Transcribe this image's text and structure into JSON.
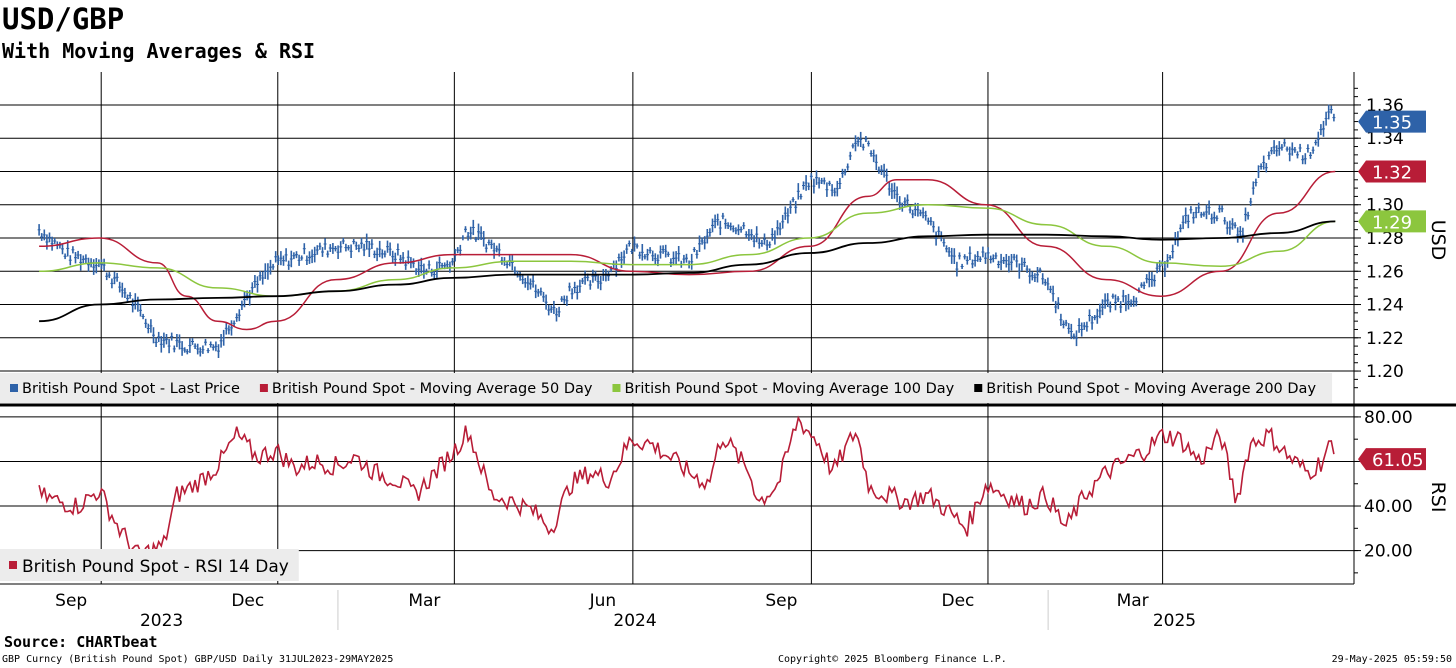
{
  "title": "USD/GBP",
  "subtitle": "With Moving Averages & RSI",
  "source": "Source: CHARTbeat",
  "footer": {
    "left": "GBP Curncy (British Pound Spot) GBP/USD  Daily 31JUL2023-29MAY2025",
    "center": "Copyright© 2025 Bloomberg Finance L.P.",
    "right": "29-May-2025 05:59:50"
  },
  "colors": {
    "price": "#2e62a8",
    "ma50": "#b81d37",
    "ma100": "#8cc63e",
    "ma200": "#000000",
    "rsi": "#b81d37",
    "grid": "#000000"
  },
  "chart_data": [
    {
      "type": "line",
      "ylabel": "USD",
      "ylim": [
        1.185,
        1.375
      ],
      "yticks": [
        "1.20",
        "1.22",
        "1.24",
        "1.26",
        "1.28",
        "1.30",
        "1.32",
        "1.34",
        "1.36"
      ],
      "x_month_labels": [
        "Sep",
        "Dec",
        "Mar",
        "Jun",
        "Sep",
        "Dec",
        "Mar"
      ],
      "x_year_labels": [
        "2023",
        "2024",
        "2025"
      ],
      "callouts": [
        {
          "text": "1.35",
          "value": 1.35,
          "color": "#2e62a8"
        },
        {
          "text": "1.32",
          "value": 1.32,
          "color": "#b81d37"
        },
        {
          "text": "1.29",
          "value": 1.29,
          "color": "#8cc63e"
        }
      ],
      "legend": [
        {
          "label": "British Pound Spot - Last Price",
          "color": "#2e62a8"
        },
        {
          "label": "British Pound Spot - Moving Average 50 Day",
          "color": "#b81d37"
        },
        {
          "label": "British Pound Spot - Moving Average 100 Day",
          "color": "#8cc63e"
        },
        {
          "label": "British Pound Spot - Moving Average 200 Day",
          "color": "#000000"
        }
      ],
      "series": [
        {
          "name": "British Pound Spot - Last Price",
          "x": [
            "2023-07-31",
            "2023-08-15",
            "2023-08-31",
            "2023-09-15",
            "2023-09-30",
            "2023-10-15",
            "2023-10-31",
            "2023-11-15",
            "2023-11-30",
            "2023-12-15",
            "2023-12-31",
            "2024-01-15",
            "2024-01-31",
            "2024-02-15",
            "2024-02-29",
            "2024-03-07",
            "2024-03-15",
            "2024-03-31",
            "2024-04-15",
            "2024-04-22",
            "2024-04-30",
            "2024-05-15",
            "2024-05-31",
            "2024-06-15",
            "2024-06-30",
            "2024-07-15",
            "2024-07-31",
            "2024-08-07",
            "2024-08-15",
            "2024-08-31",
            "2024-09-15",
            "2024-09-24",
            "2024-09-30",
            "2024-10-15",
            "2024-10-31",
            "2024-11-15",
            "2024-11-30",
            "2024-12-15",
            "2024-12-31",
            "2025-01-13",
            "2025-01-31",
            "2025-02-15",
            "2025-02-28",
            "2025-03-15",
            "2025-03-31",
            "2025-04-10",
            "2025-04-20",
            "2025-04-30",
            "2025-05-15",
            "2025-05-26",
            "2025-05-29"
          ],
          "values": [
            1.285,
            1.27,
            1.265,
            1.245,
            1.22,
            1.215,
            1.215,
            1.245,
            1.265,
            1.27,
            1.275,
            1.275,
            1.27,
            1.26,
            1.265,
            1.285,
            1.28,
            1.265,
            1.245,
            1.235,
            1.25,
            1.255,
            1.275,
            1.27,
            1.265,
            1.29,
            1.285,
            1.275,
            1.285,
            1.315,
            1.31,
            1.34,
            1.335,
            1.305,
            1.29,
            1.265,
            1.27,
            1.265,
            1.255,
            1.22,
            1.24,
            1.245,
            1.26,
            1.295,
            1.295,
            1.28,
            1.32,
            1.335,
            1.33,
            1.355,
            1.35
          ]
        },
        {
          "name": "British Pound Spot - Moving Average 50 Day",
          "x": [
            "2023-07-31",
            "2023-08-31",
            "2023-09-30",
            "2023-10-15",
            "2023-10-31",
            "2023-11-15",
            "2023-11-30",
            "2023-12-31",
            "2024-01-31",
            "2024-02-29",
            "2024-03-31",
            "2024-04-30",
            "2024-05-31",
            "2024-06-30",
            "2024-07-31",
            "2024-08-31",
            "2024-09-30",
            "2024-10-15",
            "2024-10-31",
            "2024-11-30",
            "2024-12-31",
            "2025-01-31",
            "2025-02-28",
            "2025-03-31",
            "2025-04-30",
            "2025-05-29"
          ],
          "values": [
            1.275,
            1.28,
            1.265,
            1.245,
            1.23,
            1.225,
            1.23,
            1.255,
            1.265,
            1.27,
            1.27,
            1.27,
            1.26,
            1.258,
            1.26,
            1.275,
            1.305,
            1.315,
            1.315,
            1.3,
            1.275,
            1.255,
            1.245,
            1.26,
            1.295,
            1.32
          ]
        },
        {
          "name": "British Pound Spot - Moving Average 100 Day",
          "x": [
            "2023-07-31",
            "2023-08-31",
            "2023-09-30",
            "2023-10-31",
            "2023-11-30",
            "2023-12-31",
            "2024-01-31",
            "2024-02-29",
            "2024-03-31",
            "2024-04-30",
            "2024-05-31",
            "2024-06-30",
            "2024-07-31",
            "2024-08-31",
            "2024-09-30",
            "2024-10-31",
            "2024-11-30",
            "2024-12-31",
            "2025-01-31",
            "2025-02-28",
            "2025-03-31",
            "2025-04-30",
            "2025-05-29"
          ],
          "values": [
            1.26,
            1.265,
            1.262,
            1.25,
            1.245,
            1.248,
            1.255,
            1.262,
            1.266,
            1.266,
            1.264,
            1.264,
            1.27,
            1.28,
            1.295,
            1.3,
            1.298,
            1.288,
            1.275,
            1.265,
            1.263,
            1.272,
            1.29
          ]
        },
        {
          "name": "British Pound Spot - Moving Average 200 Day",
          "x": [
            "2023-07-31",
            "2023-08-31",
            "2023-09-30",
            "2023-10-31",
            "2023-11-30",
            "2023-12-31",
            "2024-01-31",
            "2024-02-29",
            "2024-03-31",
            "2024-04-30",
            "2024-05-31",
            "2024-06-30",
            "2024-07-31",
            "2024-08-31",
            "2024-09-30",
            "2024-10-31",
            "2024-11-30",
            "2024-12-31",
            "2025-01-31",
            "2025-02-28",
            "2025-03-31",
            "2025-04-30",
            "2025-05-29"
          ],
          "values": [
            1.23,
            1.24,
            1.243,
            1.244,
            1.245,
            1.248,
            1.252,
            1.256,
            1.258,
            1.258,
            1.258,
            1.259,
            1.264,
            1.271,
            1.277,
            1.281,
            1.282,
            1.282,
            1.281,
            1.279,
            1.28,
            1.283,
            1.29
          ]
        }
      ]
    },
    {
      "type": "line",
      "ylabel": "RSI",
      "ylim": [
        5,
        84
      ],
      "yticks": [
        "20.00",
        "40.00",
        "60.00",
        "80.00"
      ],
      "callouts": [
        {
          "text": "61.05",
          "value": 61.05,
          "color": "#b81d37"
        }
      ],
      "legend": [
        {
          "label": "British Pound Spot - RSI 14 Day",
          "color": "#b81d37"
        }
      ],
      "series": [
        {
          "name": "British Pound Spot - RSI 14 Day",
          "x": [
            "2023-07-31",
            "2023-08-10",
            "2023-08-20",
            "2023-08-31",
            "2023-09-10",
            "2023-09-20",
            "2023-10-03",
            "2023-10-10",
            "2023-10-20",
            "2023-10-31",
            "2023-11-10",
            "2023-11-20",
            "2023-11-30",
            "2023-12-10",
            "2023-12-20",
            "2023-12-31",
            "2024-01-10",
            "2024-01-20",
            "2024-01-31",
            "2024-02-10",
            "2024-02-20",
            "2024-03-01",
            "2024-03-08",
            "2024-03-20",
            "2024-03-31",
            "2024-04-10",
            "2024-04-20",
            "2024-04-30",
            "2024-05-10",
            "2024-05-20",
            "2024-05-31",
            "2024-06-10",
            "2024-06-20",
            "2024-06-30",
            "2024-07-10",
            "2024-07-17",
            "2024-07-31",
            "2024-08-05",
            "2024-08-15",
            "2024-08-25",
            "2024-09-05",
            "2024-09-12",
            "2024-09-24",
            "2024-10-01",
            "2024-10-10",
            "2024-10-20",
            "2024-10-31",
            "2024-11-10",
            "2024-11-20",
            "2024-11-30",
            "2024-12-10",
            "2024-12-20",
            "2024-12-31",
            "2025-01-10",
            "2025-01-20",
            "2025-01-31",
            "2025-02-10",
            "2025-02-20",
            "2025-03-01",
            "2025-03-10",
            "2025-03-20",
            "2025-03-31",
            "2025-04-08",
            "2025-04-15",
            "2025-04-25",
            "2025-05-05",
            "2025-05-15",
            "2025-05-22",
            "2025-05-26",
            "2025-05-29"
          ],
          "values": [
            45,
            42,
            40,
            47,
            30,
            18,
            22,
            45,
            50,
            58,
            72,
            62,
            65,
            57,
            60,
            58,
            62,
            55,
            52,
            45,
            55,
            65,
            74,
            45,
            42,
            38,
            30,
            50,
            55,
            52,
            70,
            68,
            62,
            55,
            50,
            72,
            55,
            42,
            50,
            79,
            68,
            55,
            74,
            48,
            45,
            42,
            45,
            38,
            30,
            50,
            45,
            40,
            45,
            30,
            45,
            55,
            60,
            65,
            72,
            70,
            60,
            72,
            42,
            68,
            72,
            62,
            55,
            60,
            68,
            61
          ]
        }
      ]
    }
  ]
}
